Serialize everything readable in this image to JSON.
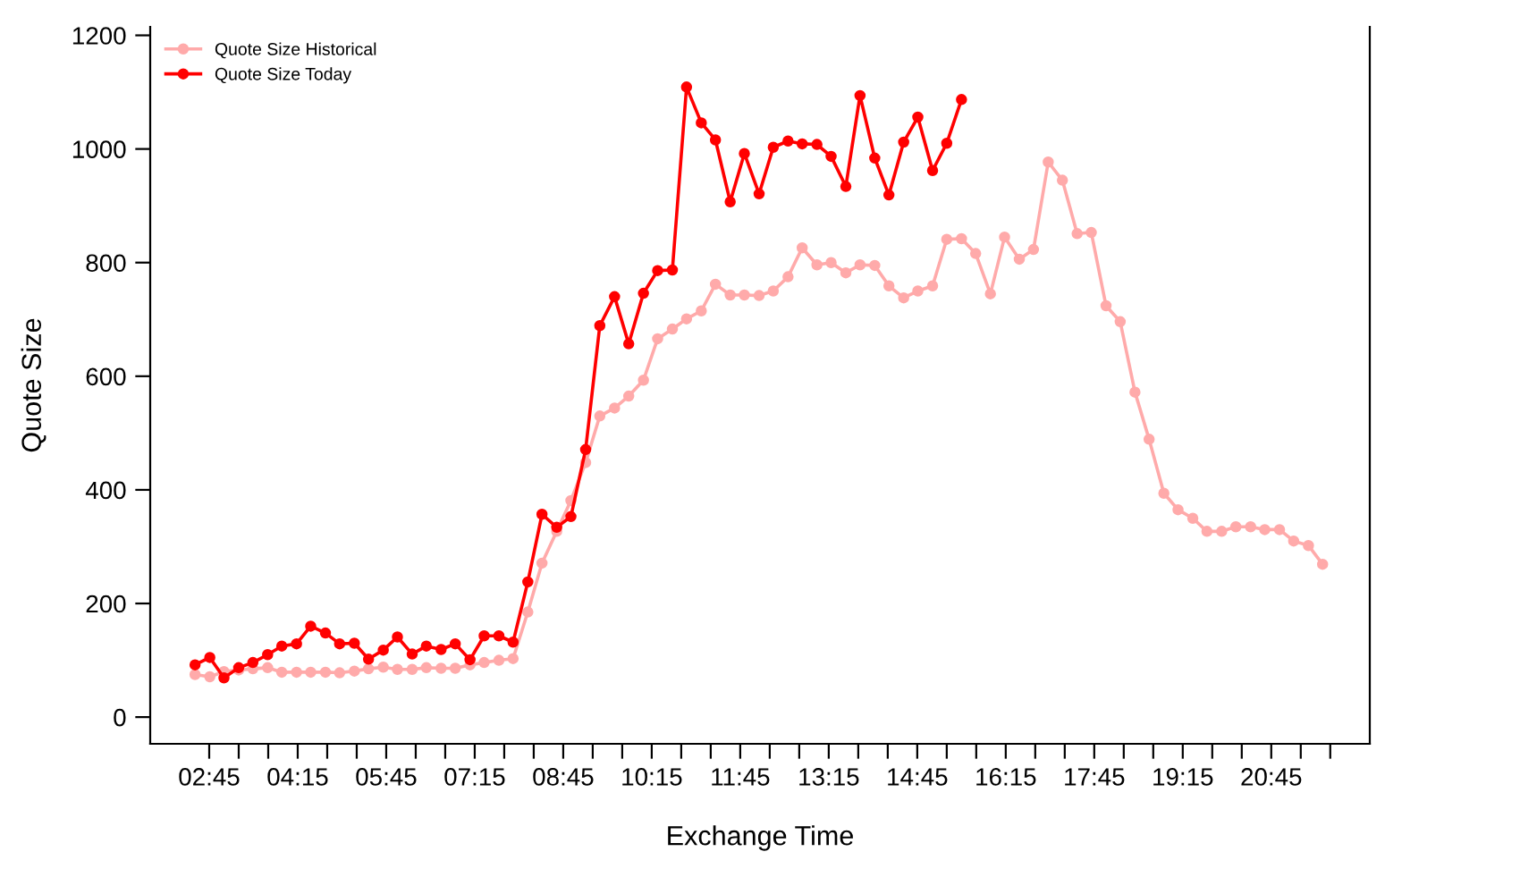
{
  "chart_data": {
    "type": "line",
    "xlabel": "Exchange Time",
    "ylabel": "Quote Size",
    "x": [
      2.51,
      2.76,
      3.0,
      3.25,
      3.49,
      3.74,
      3.98,
      4.23,
      4.47,
      4.72,
      4.96,
      5.21,
      5.45,
      5.7,
      5.94,
      6.19,
      6.43,
      6.68,
      6.92,
      7.17,
      7.41,
      7.66,
      7.9,
      8.15,
      8.39,
      8.64,
      8.88,
      9.13,
      9.37,
      9.62,
      9.86,
      10.11,
      10.35,
      10.6,
      10.84,
      11.09,
      11.33,
      11.58,
      11.82,
      12.07,
      12.31,
      12.56,
      12.8,
      13.05,
      13.29,
      13.54,
      13.78,
      14.03,
      14.27,
      14.52,
      14.76,
      15.01,
      15.25,
      15.5,
      15.74,
      15.99,
      16.23,
      16.48,
      16.72,
      16.97,
      17.21,
      17.46,
      17.7,
      17.95,
      18.19,
      18.44,
      18.68,
      18.93,
      19.17,
      19.42,
      19.66,
      19.91,
      20.15,
      20.4,
      20.64,
      20.89,
      21.13,
      21.38,
      21.62
    ],
    "series": [
      {
        "name": "Quote Size Historical",
        "color": "#ffaaaa",
        "values": [
          75,
          71,
          80,
          83,
          85,
          87,
          79,
          79,
          79,
          79,
          78,
          81,
          85,
          88,
          84,
          84,
          87,
          86,
          86,
          92,
          96,
          100,
          103,
          185,
          271,
          327,
          381,
          448,
          530,
          544,
          565,
          593,
          666,
          683,
          701,
          715,
          762,
          743,
          743,
          742,
          750,
          775,
          826,
          796,
          800,
          782,
          796,
          795,
          759,
          738,
          750,
          759,
          841,
          842,
          816,
          745,
          845,
          806,
          823,
          977,
          945,
          851,
          853,
          724,
          696,
          572,
          489,
          394,
          365,
          350,
          327,
          327,
          335,
          335,
          330,
          330,
          310,
          302,
          269
        ]
      },
      {
        "name": "Quote Size Today",
        "color": "#ff0000",
        "values": [
          92,
          105,
          69,
          87,
          96,
          110,
          125,
          129,
          160,
          148,
          129,
          130,
          102,
          118,
          141,
          111,
          125,
          119,
          129,
          101,
          143,
          143,
          132,
          238,
          357,
          334,
          353,
          471,
          689,
          740,
          657,
          746,
          786,
          787,
          1109,
          1046,
          1016,
          907,
          992,
          921,
          1003,
          1014,
          1009,
          1008,
          987,
          934,
          1094,
          984,
          919,
          1012,
          1056,
          962,
          1010,
          1087,
          null,
          null,
          null,
          null,
          null,
          null,
          null,
          null,
          null,
          null,
          null,
          null,
          null,
          null,
          null,
          null,
          null,
          null,
          null,
          null,
          null,
          null,
          null,
          null,
          null
        ]
      }
    ],
    "xlim": [
      1.75,
      22.42
    ],
    "ylim": [
      -47,
      1215
    ],
    "yticks": [
      0,
      200,
      400,
      600,
      800,
      1000,
      1200
    ],
    "xticks": [
      {
        "value": 2.75,
        "label": "02:45"
      },
      {
        "value": 3.25,
        "label": null
      },
      {
        "value": 3.75,
        "label": null
      },
      {
        "value": 4.25,
        "label": "04:15"
      },
      {
        "value": 4.75,
        "label": null
      },
      {
        "value": 5.25,
        "label": null
      },
      {
        "value": 5.75,
        "label": "05:45"
      },
      {
        "value": 6.25,
        "label": null
      },
      {
        "value": 6.75,
        "label": null
      },
      {
        "value": 7.25,
        "label": "07:15"
      },
      {
        "value": 7.75,
        "label": null
      },
      {
        "value": 8.25,
        "label": null
      },
      {
        "value": 8.75,
        "label": "08:45"
      },
      {
        "value": 9.25,
        "label": null
      },
      {
        "value": 9.75,
        "label": null
      },
      {
        "value": 10.25,
        "label": "10:15"
      },
      {
        "value": 10.75,
        "label": null
      },
      {
        "value": 11.25,
        "label": null
      },
      {
        "value": 11.75,
        "label": "11:45"
      },
      {
        "value": 12.25,
        "label": null
      },
      {
        "value": 12.75,
        "label": null
      },
      {
        "value": 13.25,
        "label": "13:15"
      },
      {
        "value": 13.75,
        "label": null
      },
      {
        "value": 14.25,
        "label": null
      },
      {
        "value": 14.75,
        "label": "14:45"
      },
      {
        "value": 15.25,
        "label": null
      },
      {
        "value": 15.75,
        "label": null
      },
      {
        "value": 16.25,
        "label": "16:15"
      },
      {
        "value": 16.75,
        "label": null
      },
      {
        "value": 17.25,
        "label": null
      },
      {
        "value": 17.75,
        "label": "17:45"
      },
      {
        "value": 18.25,
        "label": null
      },
      {
        "value": 18.75,
        "label": null
      },
      {
        "value": 19.25,
        "label": "19:15"
      },
      {
        "value": 19.75,
        "label": null
      },
      {
        "value": 20.25,
        "label": null
      },
      {
        "value": 20.75,
        "label": "20:45"
      },
      {
        "value": 21.25,
        "label": null
      },
      {
        "value": 21.75,
        "label": null
      }
    ],
    "marker": "circle",
    "line_style": "solid",
    "legend": "top left",
    "grid": false
  }
}
